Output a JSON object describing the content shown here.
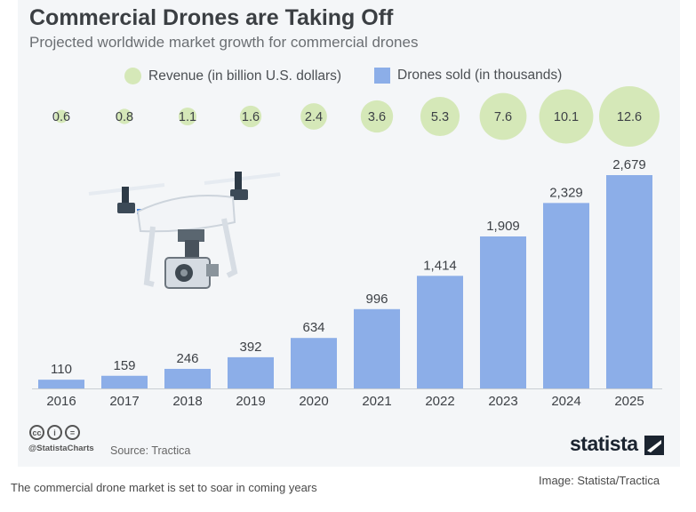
{
  "chart_data": {
    "type": "bar",
    "title": "Commercial Drones are Taking Off",
    "subtitle": "Projected worldwide market growth for commercial drones",
    "categories": [
      "2016",
      "2017",
      "2018",
      "2019",
      "2020",
      "2021",
      "2022",
      "2023",
      "2024",
      "2025"
    ],
    "series": [
      {
        "name": "Drones sold (in thousands)",
        "type": "bar",
        "values": [
          110,
          159,
          246,
          392,
          634,
          996,
          1414,
          1909,
          2329,
          2679
        ],
        "labels": [
          "110",
          "159",
          "246",
          "392",
          "634",
          "996",
          "1,414",
          "1,909",
          "2,329",
          "2,679"
        ],
        "color": "#8caee8"
      },
      {
        "name": "Revenue (in billion U.S. dollars)",
        "type": "bubble",
        "values": [
          0.6,
          0.8,
          1.1,
          1.6,
          2.4,
          3.6,
          5.3,
          7.6,
          10.1,
          12.6
        ],
        "labels": [
          "0.6",
          "0.8",
          "1.1",
          "1.6",
          "2.4",
          "3.6",
          "5.3",
          "7.6",
          "10.1",
          "12.6"
        ],
        "color": "#d5e8b8"
      }
    ],
    "legend_position": "top",
    "grid": false
  },
  "footer": {
    "handle": "@StatistaCharts",
    "source": "Source: Tractica",
    "brand": "statista",
    "cc_icons": [
      "cc",
      "i",
      "="
    ]
  },
  "caption": "The commercial drone market is set to soar in coming years",
  "credit": "Image: Statista/Tractica",
  "icons": {
    "illustration": "drone-illustration",
    "brand_mark": "statista-logo-icon"
  }
}
